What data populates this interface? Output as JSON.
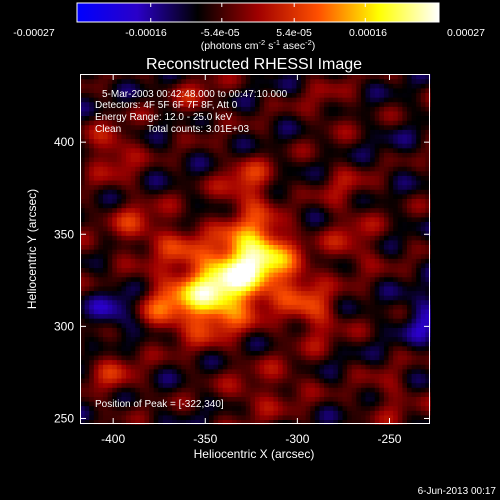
{
  "colorbar": {
    "ticks": [
      "-0.00027",
      "-0.00016",
      "-5.4e-05",
      "5.4e-05",
      "0.00016",
      "0.00027"
    ],
    "unit_label": {
      "open": "(photons cm",
      "exp1": "-2",
      "mid1": " s",
      "exp2": "-1",
      "mid2": " asec",
      "exp3": "-2",
      "close": ")"
    },
    "stops": [
      "#0000ff",
      "#2a00c8",
      "#000000",
      "#a00000",
      "#ff5000",
      "#ffff00",
      "#ffffff"
    ]
  },
  "header": {
    "date_range": "5-Mar-2003 00:42:48.000 to 00:47:10.000",
    "detectors": "Detectors: 4F 5F 6F 7F 8F, Att 0",
    "energy": "Energy Range: 12.0 - 25.0 keV",
    "clean_label": "Clean",
    "total_counts": "Total counts: 3.01E+03",
    "peak_position": "Position of Peak = [-322,340]"
  },
  "footer": {
    "date": "6-Jun-2013 00:17"
  },
  "chart_data": {
    "type": "heatmap",
    "title": "Reconstructed RHESSI Image",
    "xlabel": "Heliocentric X (arcsec)",
    "ylabel": "Heliocentric Y (arcsec)",
    "xlim": [
      -418,
      -228
    ],
    "ylim": [
      247,
      437
    ],
    "x_ticks": [
      -400,
      -350,
      -300,
      -250
    ],
    "y_ticks": [
      250,
      300,
      350,
      400
    ],
    "clim": [
      -0.00027,
      0.00027
    ],
    "peak": [
      -322,
      340
    ],
    "sources": [
      {
        "kind": "peak",
        "x": -322,
        "y": 340,
        "value": 0.00027
      },
      {
        "kind": "ridge",
        "x": -338,
        "y": 322,
        "value": 0.0002
      },
      {
        "kind": "ridge",
        "x": -353,
        "y": 314,
        "value": 0.00016
      },
      {
        "kind": "arm",
        "x": -327,
        "y": 377,
        "value": 0.00012
      },
      {
        "kind": "arm",
        "x": -290,
        "y": 305,
        "value": 0.0001
      },
      {
        "kind": "arm",
        "x": -300,
        "y": 322,
        "value": 9e-05
      },
      {
        "kind": "arm",
        "x": -375,
        "y": 312,
        "value": 9e-05
      },
      {
        "kind": "arm",
        "x": -365,
        "y": 345,
        "value": 8e-05
      },
      {
        "kind": "blob",
        "x": -400,
        "y": 395,
        "value": 0.0001
      },
      {
        "kind": "blob",
        "x": -388,
        "y": 355,
        "value": 9e-05
      },
      {
        "kind": "blob",
        "x": -400,
        "y": 275,
        "value": 8e-05
      },
      {
        "kind": "blob",
        "x": -325,
        "y": 262,
        "value": 6e-05
      },
      {
        "kind": "blob",
        "x": -270,
        "y": 345,
        "value": 8e-05
      },
      {
        "kind": "blob",
        "x": -275,
        "y": 375,
        "value": 6e-05
      },
      {
        "kind": "blob",
        "x": -355,
        "y": 425,
        "value": 6e-05
      },
      {
        "kind": "blob",
        "x": -283,
        "y": 420,
        "value": 5e-05
      },
      {
        "kind": "blob",
        "x": -250,
        "y": 262,
        "value": 6e-05
      },
      {
        "kind": "blob",
        "x": -305,
        "y": 270,
        "value": 5e-05
      },
      {
        "kind": "trough",
        "x": -398,
        "y": 308,
        "value": -0.00016
      },
      {
        "kind": "trough",
        "x": -232,
        "y": 305,
        "value": -0.00016
      },
      {
        "kind": "trough",
        "x": -305,
        "y": 365,
        "value": -9e-05
      },
      {
        "kind": "trough",
        "x": -250,
        "y": 400,
        "value": -9e-05
      },
      {
        "kind": "trough",
        "x": -380,
        "y": 395,
        "value": -8e-05
      },
      {
        "kind": "trough",
        "x": -250,
        "y": 330,
        "value": -7e-05
      },
      {
        "kind": "trough",
        "x": -345,
        "y": 270,
        "value": -7e-05
      },
      {
        "kind": "trough",
        "x": -410,
        "y": 340,
        "value": -6e-05
      }
    ]
  }
}
